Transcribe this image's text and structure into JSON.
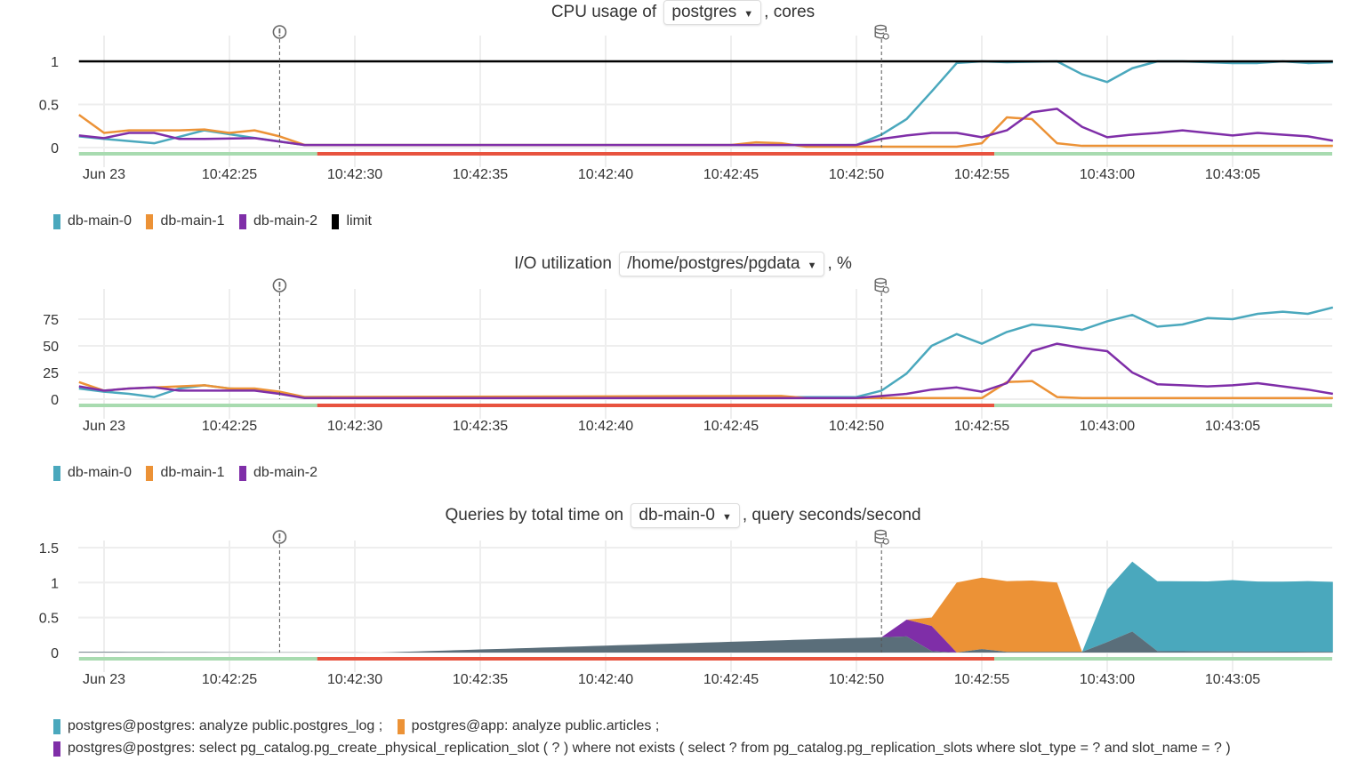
{
  "colors": {
    "db-main-0": "#4aa8bd",
    "db-main-1": "#ec9236",
    "db-main-2": "#7f2ea8",
    "limit": "#000000",
    "other": "#5a6e7a",
    "ok": "#a8dbb0",
    "bad": "#e8533f"
  },
  "x_ticks": [
    "Jun 23",
    "10:42:25",
    "10:42:30",
    "10:42:35",
    "10:42:40",
    "10:42:45",
    "10:42:50",
    "10:42:55",
    "10:43:00",
    "10:43:05"
  ],
  "x_range": [
    "10:42:19",
    "10:43:09"
  ],
  "annotations": [
    {
      "icon": "alert-circle-icon",
      "time": "10:42:27"
    },
    {
      "icon": "database-refresh-icon",
      "time": "10:42:51"
    }
  ],
  "status_segments": [
    {
      "from": "10:42:19",
      "to": "10:42:28.5",
      "state": "ok"
    },
    {
      "from": "10:42:28.5",
      "to": "10:42:55.5",
      "state": "bad"
    },
    {
      "from": "10:42:55.5",
      "to": "10:43:09",
      "state": "ok"
    }
  ],
  "charts": {
    "cpu": {
      "title_prefix": "CPU usage of",
      "selector": "postgres",
      "title_suffix": ", cores",
      "y_ticks": [
        "0",
        "0.5",
        "1"
      ],
      "legend": [
        "db-main-0",
        "db-main-1",
        "db-main-2",
        "limit"
      ]
    },
    "io": {
      "title_prefix": "I/O utilization",
      "selector": "/home/postgres/pgdata",
      "title_suffix": ", %",
      "y_ticks": [
        "0",
        "25",
        "50",
        "75"
      ],
      "legend": [
        "db-main-0",
        "db-main-1",
        "db-main-2"
      ]
    },
    "queries": {
      "title_prefix": "Queries by total time on",
      "selector": "db-main-0",
      "title_suffix": ", query seconds/second",
      "y_ticks": [
        "0",
        "0.5",
        "1",
        "1.5"
      ],
      "legend": [
        "postgres@postgres: analyze public.postgres_log ;",
        "postgres@app: analyze public.articles ;",
        "postgres@postgres: select pg_catalog.pg_create_physical_replication_slot ( ? ) where not exists ( select ? from pg_catalog.pg_replication_slots where slot_type = ? and slot_name = ? )"
      ]
    }
  },
  "chart_data": [
    {
      "type": "line",
      "title": "CPU usage of postgres, cores",
      "ylim": [
        0,
        1.2
      ],
      "series": [
        {
          "name": "db-main-0",
          "points": [
            [
              "10:42:19",
              0.13
            ],
            [
              "10:42:20",
              0.1
            ],
            [
              "10:42:22",
              0.05
            ],
            [
              "10:42:24",
              0.2
            ],
            [
              "10:42:25.8",
              0.12
            ],
            [
              "10:42:28",
              0.03
            ],
            [
              "10:42:50",
              0.03
            ],
            [
              "10:42:51",
              0.15
            ],
            [
              "10:42:52",
              0.33
            ],
            [
              "10:42:53",
              0.65
            ],
            [
              "10:42:54",
              0.98
            ],
            [
              "10:42:55",
              1.0
            ],
            [
              "10:42:56",
              0.99
            ],
            [
              "10:42:58",
              1.0
            ],
            [
              "10:42:59",
              0.85
            ],
            [
              "10:43:00",
              0.76
            ],
            [
              "10:43:01",
              0.92
            ],
            [
              "10:43:02",
              1.0
            ],
            [
              "10:43:03",
              1.0
            ],
            [
              "10:43:05",
              0.98
            ],
            [
              "10:43:06",
              0.98
            ],
            [
              "10:43:07",
              1.0
            ],
            [
              "10:43:08",
              0.98
            ],
            [
              "10:43:09",
              0.99
            ]
          ]
        },
        {
          "name": "db-main-1",
          "points": [
            [
              "10:42:19",
              0.38
            ],
            [
              "10:42:20",
              0.17
            ],
            [
              "10:42:21",
              0.2
            ],
            [
              "10:42:23",
              0.2
            ],
            [
              "10:42:24",
              0.21
            ],
            [
              "10:42:25",
              0.17
            ],
            [
              "10:42:26",
              0.2
            ],
            [
              "10:42:27",
              0.13
            ],
            [
              "10:42:28",
              0.03
            ],
            [
              "10:42:45",
              0.03
            ],
            [
              "10:42:46",
              0.06
            ],
            [
              "10:42:47",
              0.05
            ],
            [
              "10:42:48",
              0.01
            ],
            [
              "10:42:54",
              0.01
            ],
            [
              "10:42:55",
              0.05
            ],
            [
              "10:42:56",
              0.35
            ],
            [
              "10:42:57",
              0.33
            ],
            [
              "10:42:58",
              0.05
            ],
            [
              "10:42:59",
              0.02
            ],
            [
              "10:43:09",
              0.02
            ]
          ]
        },
        {
          "name": "db-main-2",
          "points": [
            [
              "10:42:19",
              0.14
            ],
            [
              "10:42:20",
              0.11
            ],
            [
              "10:42:21",
              0.17
            ],
            [
              "10:42:22",
              0.17
            ],
            [
              "10:42:23",
              0.1
            ],
            [
              "10:42:24",
              0.1
            ],
            [
              "10:42:26",
              0.11
            ],
            [
              "10:42:28",
              0.03
            ],
            [
              "10:42:50",
              0.03
            ],
            [
              "10:42:51",
              0.1
            ],
            [
              "10:42:52",
              0.14
            ],
            [
              "10:42:53",
              0.17
            ],
            [
              "10:42:54",
              0.17
            ],
            [
              "10:42:55",
              0.12
            ],
            [
              "10:42:56",
              0.2
            ],
            [
              "10:42:57",
              0.41
            ],
            [
              "10:42:58",
              0.45
            ],
            [
              "10:42:59",
              0.24
            ],
            [
              "10:43:00",
              0.12
            ],
            [
              "10:43:01",
              0.15
            ],
            [
              "10:43:02",
              0.17
            ],
            [
              "10:43:03",
              0.2
            ],
            [
              "10:43:04",
              0.17
            ],
            [
              "10:43:05",
              0.14
            ],
            [
              "10:43:06",
              0.17
            ],
            [
              "10:43:07",
              0.15
            ],
            [
              "10:43:08",
              0.13
            ],
            [
              "10:43:09",
              0.08
            ]
          ]
        },
        {
          "name": "limit",
          "points": [
            [
              "10:42:19",
              1
            ],
            [
              "10:43:09",
              1
            ]
          ]
        }
      ]
    },
    {
      "type": "line",
      "title": "I/O utilization /home/postgres/pgdata, %",
      "ylim": [
        0,
        95
      ],
      "series": [
        {
          "name": "db-main-0",
          "points": [
            [
              "10:42:19",
              10
            ],
            [
              "10:42:20",
              7
            ],
            [
              "10:42:21",
              5
            ],
            [
              "10:42:22",
              2
            ],
            [
              "10:42:23",
              10
            ],
            [
              "10:42:24",
              13
            ],
            [
              "10:42:25",
              10
            ],
            [
              "10:42:26",
              9
            ],
            [
              "10:42:27",
              5
            ],
            [
              "10:42:28",
              2
            ],
            [
              "10:42:29",
              2
            ],
            [
              "10:42:30",
              1
            ],
            [
              "10:42:50",
              2
            ],
            [
              "10:42:51",
              8
            ],
            [
              "10:42:52",
              24
            ],
            [
              "10:42:53",
              50
            ],
            [
              "10:42:54",
              61
            ],
            [
              "10:42:55",
              52
            ],
            [
              "10:42:56",
              63
            ],
            [
              "10:42:57",
              70
            ],
            [
              "10:42:58",
              68
            ],
            [
              "10:42:59",
              65
            ],
            [
              "10:43:00",
              73
            ],
            [
              "10:43:01",
              79
            ],
            [
              "10:43:02",
              68
            ],
            [
              "10:43:03",
              70
            ],
            [
              "10:43:04",
              76
            ],
            [
              "10:43:05",
              75
            ],
            [
              "10:43:06",
              80
            ],
            [
              "10:43:07",
              82
            ],
            [
              "10:43:08",
              80
            ],
            [
              "10:43:09",
              86
            ]
          ]
        },
        {
          "name": "db-main-1",
          "points": [
            [
              "10:42:19",
              16
            ],
            [
              "10:42:20",
              8
            ],
            [
              "10:42:21",
              10
            ],
            [
              "10:42:23",
              12
            ],
            [
              "10:42:24",
              13
            ],
            [
              "10:42:25",
              10
            ],
            [
              "10:42:26",
              10
            ],
            [
              "10:42:27",
              7
            ],
            [
              "10:42:28",
              2
            ],
            [
              "10:42:47",
              3
            ],
            [
              "10:42:48",
              1
            ],
            [
              "10:42:55",
              1
            ],
            [
              "10:42:56",
              16
            ],
            [
              "10:42:57",
              17
            ],
            [
              "10:42:58",
              2
            ],
            [
              "10:42:59",
              1
            ],
            [
              "10:43:09",
              1
            ]
          ]
        },
        {
          "name": "db-main-2",
          "points": [
            [
              "10:42:19",
              12
            ],
            [
              "10:42:20",
              8
            ],
            [
              "10:42:21",
              10
            ],
            [
              "10:42:22",
              11
            ],
            [
              "10:42:23",
              8
            ],
            [
              "10:42:26",
              8
            ],
            [
              "10:42:27",
              5
            ],
            [
              "10:42:28",
              1
            ],
            [
              "10:42:50",
              1
            ],
            [
              "10:42:51",
              3
            ],
            [
              "10:42:52",
              5
            ],
            [
              "10:42:53",
              9
            ],
            [
              "10:42:54",
              11
            ],
            [
              "10:42:55",
              7
            ],
            [
              "10:42:56",
              15
            ],
            [
              "10:42:57",
              45
            ],
            [
              "10:42:58",
              52
            ],
            [
              "10:42:59",
              48
            ],
            [
              "10:43:00",
              45
            ],
            [
              "10:43:01",
              25
            ],
            [
              "10:43:02",
              14
            ],
            [
              "10:43:03",
              13
            ],
            [
              "10:43:04",
              12
            ],
            [
              "10:43:05",
              13
            ],
            [
              "10:43:06",
              15
            ],
            [
              "10:43:07",
              12
            ],
            [
              "10:43:08",
              9
            ],
            [
              "10:43:09",
              5
            ]
          ]
        }
      ]
    },
    {
      "type": "area",
      "stacked": true,
      "title": "Queries by total time on db-main-0, query seconds/second",
      "ylim": [
        0,
        1.6
      ],
      "series": [
        {
          "color_key": "other",
          "points": [
            [
              "10:42:19",
              0.01
            ],
            [
              "10:42:31",
              0.0
            ],
            [
              "10:42:52",
              0.23
            ],
            [
              "10:42:53",
              0.02
            ],
            [
              "10:42:54",
              0
            ],
            [
              "10:42:55",
              0.05
            ],
            [
              "10:42:56",
              0.01
            ],
            [
              "10:42:59",
              0.01
            ],
            [
              "10:43:00",
              0.15
            ],
            [
              "10:43:01",
              0.3
            ],
            [
              "10:43:02",
              0.02
            ],
            [
              "10:43:09",
              0.01
            ]
          ]
        },
        {
          "name": "postgres@postgres: select pg_catalog.pg_create_physical_replication_slot ( ? ) where not exists ( select ? from pg_catalog.pg_replication_slots where slot_type = ? and slot_name = ? )",
          "color_key": "db-main-2",
          "points": [
            [
              "10:42:19",
              0
            ],
            [
              "10:42:51",
              0
            ],
            [
              "10:42:52",
              0.24
            ],
            [
              "10:42:53",
              0.36
            ],
            [
              "10:42:54",
              0
            ],
            [
              "10:43:09",
              0
            ]
          ]
        },
        {
          "name": "postgres@app: analyze public.articles ;",
          "color_key": "db-main-1",
          "points": [
            [
              "10:42:19",
              0
            ],
            [
              "10:42:52",
              0
            ],
            [
              "10:42:53",
              0.12
            ],
            [
              "10:42:54",
              1.0
            ],
            [
              "10:42:55",
              1.02
            ],
            [
              "10:42:56",
              1.01
            ],
            [
              "10:42:57",
              1.02
            ],
            [
              "10:42:58",
              0.99
            ],
            [
              "10:42:59",
              0
            ],
            [
              "10:43:09",
              0
            ]
          ]
        },
        {
          "name": "postgres@postgres: analyze public.postgres_log ;",
          "color_key": "db-main-0",
          "points": [
            [
              "10:42:19",
              0
            ],
            [
              "10:42:59",
              0
            ],
            [
              "10:43:00",
              0.75
            ],
            [
              "10:43:01",
              1.0
            ],
            [
              "10:43:02",
              1.0
            ],
            [
              "10:43:03",
              1.0
            ],
            [
              "10:43:04",
              1.0
            ],
            [
              "10:43:05",
              1.02
            ],
            [
              "10:43:06",
              1.0
            ],
            [
              "10:43:07",
              1.0
            ],
            [
              "10:43:08",
              1.01
            ],
            [
              "10:43:09",
              1.0
            ]
          ]
        }
      ]
    }
  ]
}
